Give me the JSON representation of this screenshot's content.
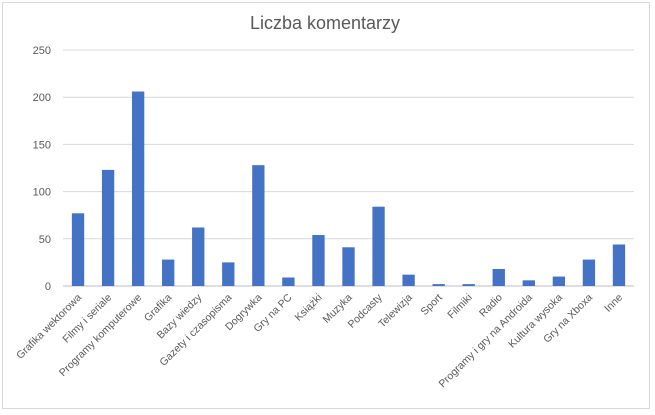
{
  "chart_data": {
    "type": "bar",
    "title": "Liczba komentarzy",
    "xlabel": "",
    "ylabel": "",
    "ylim": [
      0,
      250
    ],
    "yticks": [
      "0",
      "50",
      "100",
      "150",
      "200",
      "250"
    ],
    "grid": true,
    "legend": "none",
    "color": "#4472c4",
    "categories": [
      "Grafika wektorowa",
      "Filmy i seriale",
      "Programy komputerowe",
      "Grafika",
      "Bazy wiedzy",
      "Gazety i czasopisma",
      "Dogrywka",
      "Gry na PC",
      "Książki",
      "Muzyka",
      "Podcasty",
      "Telewizja",
      "Sport",
      "Filmiki",
      "Radio",
      "Programy i gry na Androida",
      "Kultura wysoka",
      "Gry na Xboxa",
      "Inne"
    ],
    "values": [
      77,
      123,
      206,
      28,
      62,
      25,
      128,
      9,
      54,
      41,
      84,
      12,
      2,
      2,
      18,
      6,
      10,
      28,
      44
    ]
  }
}
